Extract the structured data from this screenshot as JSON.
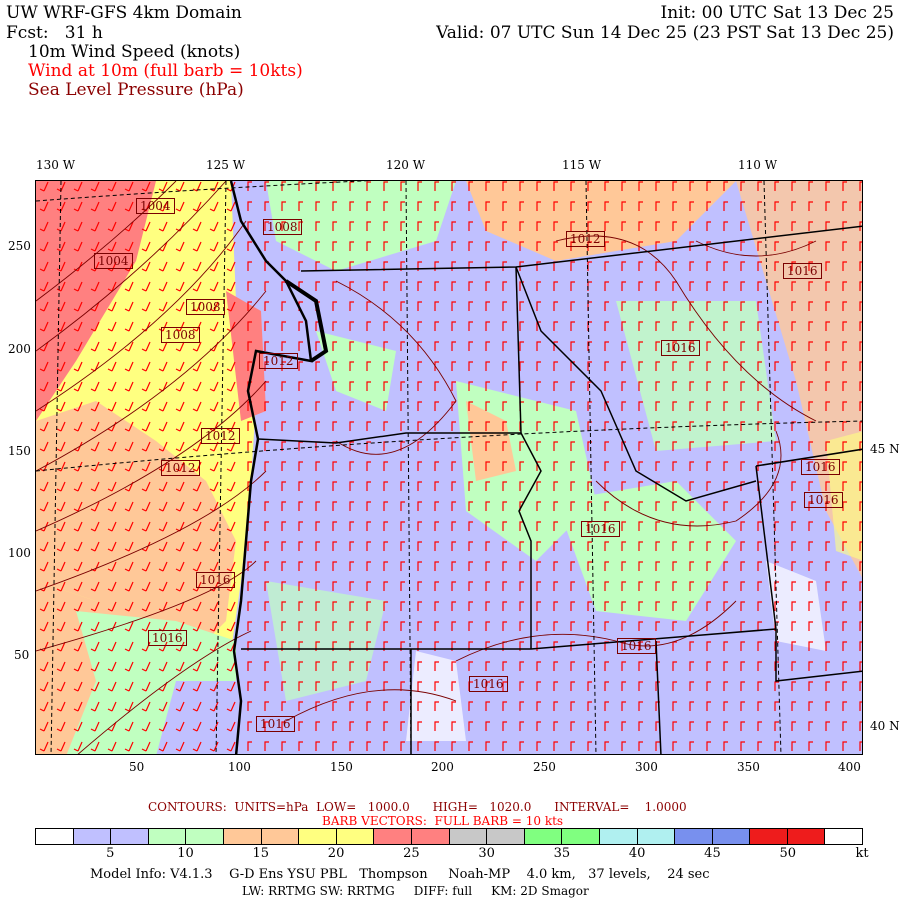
{
  "header": {
    "title": "UW WRF-GFS 4km Domain",
    "init": "Init: 00 UTC Sat 13 Dec 25",
    "forecast": "Fcst:   31 h",
    "valid": "Valid: 07 UTC Sun 14 Dec 25 (23 PST Sat 13 Dec 25)",
    "field1": "10m Wind Speed (knots)",
    "field2": "Wind at 10m (full barb = 10kts)",
    "field3": "Sea Level Pressure (hPa)"
  },
  "axes": {
    "top_lon": [
      "130 W",
      "125 W",
      "120 W",
      "115 W",
      "110 W"
    ],
    "left": [
      "250",
      "200",
      "150",
      "100",
      "50"
    ],
    "bottom": [
      "50",
      "100",
      "150",
      "200",
      "250",
      "300",
      "350",
      "400"
    ],
    "right_lat": [
      "45 N",
      "40 N"
    ]
  },
  "pressure_labels": [
    "1004",
    "1004",
    "1008",
    "1008",
    "1008",
    "1012",
    "1012",
    "1012",
    "1012",
    "1016",
    "1016",
    "1016",
    "1016",
    "1016",
    "1016",
    "1016",
    "1016",
    "1016",
    "1016"
  ],
  "footer": {
    "contours": "CONTOURS:  UNITS=hPa  LOW=   1000.0      HIGH=   1020.0      INTERVAL=    1.0000",
    "barbs": "BARB VECTORS:  FULL BARB = 10 kts",
    "model1": "Model Info: V4.1.3    G-D Ens YSU PBL   Thompson     Noah-MP    4.0 km,   37 levels,    24 sec",
    "model2": "LW: RRTMG SW: RRTMG     DIFF: full     KM: 2D Smagor"
  },
  "colorbar": {
    "unit": "kt",
    "labels": [
      "5",
      "10",
      "15",
      "20",
      "25",
      "30",
      "35",
      "40",
      "45",
      "50"
    ],
    "colors": [
      "#ffffff",
      "#c0c0ff",
      "#c0c0ff",
      "#c0ffc0",
      "#c0ffc0",
      "#ffc898",
      "#ffc898",
      "#ffff80",
      "#ffff80",
      "#ff8080",
      "#ff8080",
      "#c8c8c8",
      "#c8c8c8",
      "#80ff80",
      "#80ff80",
      "#b0f0f0",
      "#b0f0f0",
      "#7890ee",
      "#7890ee",
      "#ee1c1c",
      "#ee1c1c",
      "#ffffff"
    ]
  }
}
